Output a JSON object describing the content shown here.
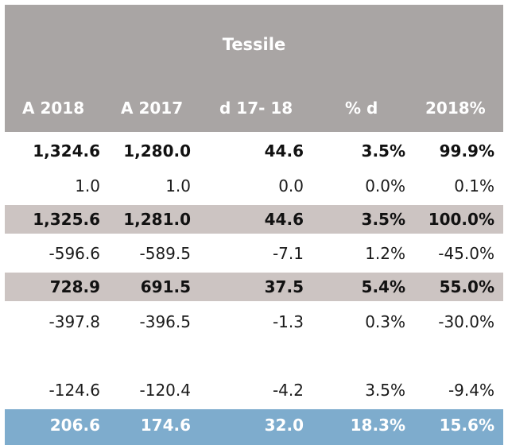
{
  "table": {
    "title": "Tessile",
    "columns": [
      "A 2018",
      "A 2017",
      "d 17- 18",
      "% d",
      "2018%"
    ],
    "rows": [
      {
        "cells": [
          "1,324.6",
          "1,280.0",
          "44.6",
          "3.5%",
          "99.9%"
        ],
        "style": "bold"
      },
      {
        "cells": [
          "1.0",
          "1.0",
          "0.0",
          "0.0%",
          "0.1%"
        ],
        "style": "normal"
      },
      {
        "cells": [
          "1,325.6",
          "1,281.0",
          "44.6",
          "3.5%",
          "100.0%"
        ],
        "style": "shaded-bold"
      },
      {
        "cells": [
          "-596.6",
          "-589.5",
          "-7.1",
          "1.2%",
          "-45.0%"
        ],
        "style": "normal"
      },
      {
        "cells": [
          "728.9",
          "691.5",
          "37.5",
          "5.4%",
          "55.0%"
        ],
        "style": "shaded-bold"
      },
      {
        "cells": [
          "-397.8",
          "-396.5",
          "-1.3",
          "0.3%",
          "-30.0%"
        ],
        "style": "normal"
      },
      {
        "cells": [
          "-124.6",
          "-120.4",
          "-4.2",
          "3.5%",
          "-9.4%"
        ],
        "style": "normal"
      },
      {
        "cells": [
          "206.6",
          "174.6",
          "32.0",
          "18.3%",
          "15.6%"
        ],
        "style": "total"
      }
    ]
  },
  "colors": {
    "header_bg": "#a9a5a4",
    "shaded_row_bg": "#ccc4c2",
    "total_row_bg": "#7eaccd",
    "header_text": "#ffffff"
  }
}
